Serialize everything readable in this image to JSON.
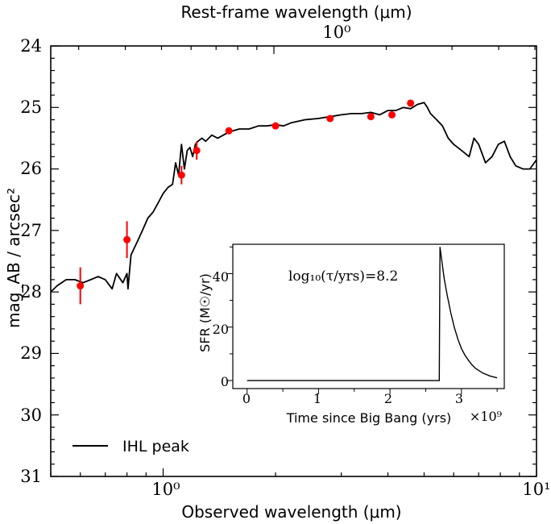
{
  "chart_data": [
    {
      "type": "line",
      "top_axis_label": "Rest-frame wavelength (μm)",
      "top_tick_label": "10⁰",
      "xlabel": "Observed wavelength (μm)",
      "ylabel": "mag_AB / arcsec²",
      "xscale": "log",
      "xlim": [
        0.5,
        10
      ],
      "ylim": [
        31,
        24
      ],
      "y_inverted": true,
      "x_tick_labels": [
        "10⁰",
        "10¹"
      ],
      "y_tick_labels": [
        "24",
        "25",
        "26",
        "27",
        "28",
        "29",
        "30",
        "31"
      ],
      "legend": {
        "entries": [
          "IHL peak"
        ],
        "position": "bottom-left"
      },
      "series": [
        {
          "name": "IHL peak",
          "color": "#000000",
          "x": [
            0.5,
            0.52,
            0.55,
            0.58,
            0.61,
            0.64,
            0.67,
            0.7,
            0.73,
            0.75,
            0.78,
            0.8,
            0.805,
            0.82,
            0.85,
            0.88,
            0.91,
            0.94,
            0.97,
            1.0,
            1.03,
            1.06,
            1.08,
            1.1,
            1.12,
            1.14,
            1.16,
            1.18,
            1.2,
            1.22,
            1.24,
            1.27,
            1.3,
            1.35,
            1.4,
            1.45,
            1.5,
            1.6,
            1.7,
            1.8,
            1.9,
            2.0,
            2.1,
            2.2,
            2.4,
            2.6,
            2.8,
            3.0,
            3.2,
            3.4,
            3.6,
            3.8,
            4.0,
            4.2,
            4.4,
            4.6,
            4.8,
            5.0,
            5.1,
            5.2,
            5.4,
            5.6,
            5.8,
            6.0,
            6.3,
            6.6,
            6.8,
            7.0,
            7.3,
            7.6,
            7.9,
            8.2,
            8.5,
            8.8,
            9.2,
            9.6,
            10.0
          ],
          "values": [
            28.0,
            27.9,
            27.8,
            27.8,
            27.85,
            27.8,
            27.75,
            27.8,
            27.95,
            27.7,
            27.85,
            27.7,
            27.95,
            27.4,
            27.2,
            27.0,
            26.8,
            26.7,
            26.55,
            26.4,
            26.3,
            26.25,
            25.9,
            26.1,
            25.6,
            26.0,
            25.7,
            25.65,
            25.8,
            25.6,
            25.55,
            25.5,
            25.55,
            25.45,
            25.5,
            25.45,
            25.4,
            25.35,
            25.35,
            25.3,
            25.3,
            25.28,
            25.3,
            25.25,
            25.2,
            25.18,
            25.15,
            25.12,
            25.1,
            25.1,
            25.08,
            25.12,
            25.05,
            25.05,
            25.0,
            25.02,
            24.95,
            24.92,
            25.0,
            25.1,
            25.2,
            25.3,
            25.5,
            25.6,
            25.7,
            25.8,
            25.5,
            25.6,
            25.9,
            25.8,
            25.6,
            25.55,
            25.8,
            25.95,
            26.0,
            26.0,
            25.85
          ]
        },
        {
          "name": "",
          "kind": "scatter",
          "color": "#ff0000",
          "x": [
            0.6,
            0.8,
            1.12,
            1.23,
            1.5,
            2.0,
            2.8,
            3.6,
            4.1,
            4.6
          ],
          "values": [
            27.9,
            27.15,
            26.1,
            25.7,
            25.38,
            25.3,
            25.18,
            25.15,
            25.12,
            24.93
          ],
          "errors": [
            0.3,
            0.3,
            0.15,
            0.15,
            0.05,
            0.05,
            0.05,
            0.05,
            0.05,
            0.05
          ]
        }
      ]
    },
    {
      "type": "line",
      "annotation": "log₁₀(τ/yrs)=8.2",
      "xlabel": "Time since Big Bang (yrs)",
      "x_offset_text": "×10⁹",
      "ylabel": "SFR (M☉/yr)",
      "xlim": [
        -0.2,
        3.6
      ],
      "ylim": [
        -3,
        51
      ],
      "x_tick_labels": [
        "0",
        "1",
        "2",
        "3"
      ],
      "y_tick_labels": [
        "0",
        "20",
        "40"
      ],
      "series": [
        {
          "name": "",
          "color": "#000000",
          "x": [
            0,
            2.69,
            2.7,
            2.73,
            2.76,
            2.8,
            2.85,
            2.9,
            2.95,
            3.0,
            3.05,
            3.1,
            3.15,
            3.2,
            3.3,
            3.4,
            3.5
          ],
          "values": [
            0,
            0,
            50,
            44,
            38,
            32,
            25.5,
            20,
            15.5,
            12,
            9.5,
            7.5,
            5.8,
            4.5,
            2.8,
            1.7,
            1.0
          ]
        }
      ]
    }
  ]
}
